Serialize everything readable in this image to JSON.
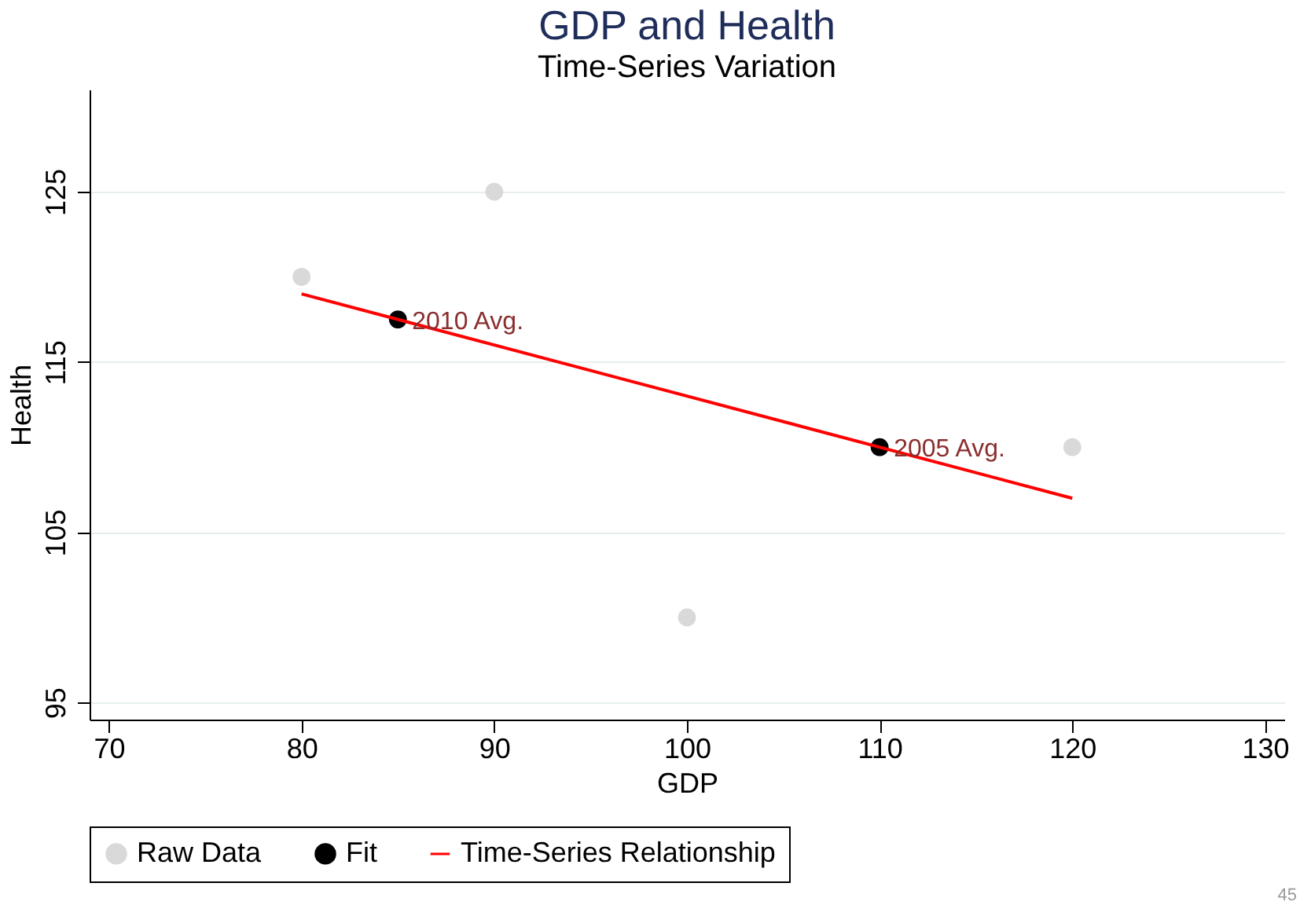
{
  "chart_data": {
    "type": "scatter",
    "title": "GDP and Health",
    "subtitle": "Time-Series Variation",
    "xlabel": "GDP",
    "ylabel": "Health",
    "xlim": [
      69,
      131
    ],
    "xticks": [
      70,
      80,
      90,
      100,
      110,
      120,
      130
    ],
    "ylim": [
      94,
      131
    ],
    "yticks": [
      95,
      105,
      115,
      125
    ],
    "grid": "y",
    "legend": "bottom",
    "series": [
      {
        "name": "Raw Data",
        "color": "#d9d9d9",
        "marker": "circle",
        "x": [
          80,
          90,
          100,
          120
        ],
        "values": [
          120,
          125,
          100,
          110
        ]
      },
      {
        "name": "Fit",
        "color": "#000000",
        "marker": "circle",
        "x": [
          85,
          110
        ],
        "values": [
          117.5,
          110
        ]
      },
      {
        "name": "Time-Series Relationship",
        "type": "line",
        "color": "#ff0000",
        "x": [
          80,
          120
        ],
        "values": [
          119,
          107
        ]
      }
    ],
    "annotations": [
      {
        "text": "2010 Avg.",
        "x": 85,
        "y": 117.5
      },
      {
        "text": "2005 Avg.",
        "x": 110,
        "y": 110
      },
      "45"
    ]
  }
}
